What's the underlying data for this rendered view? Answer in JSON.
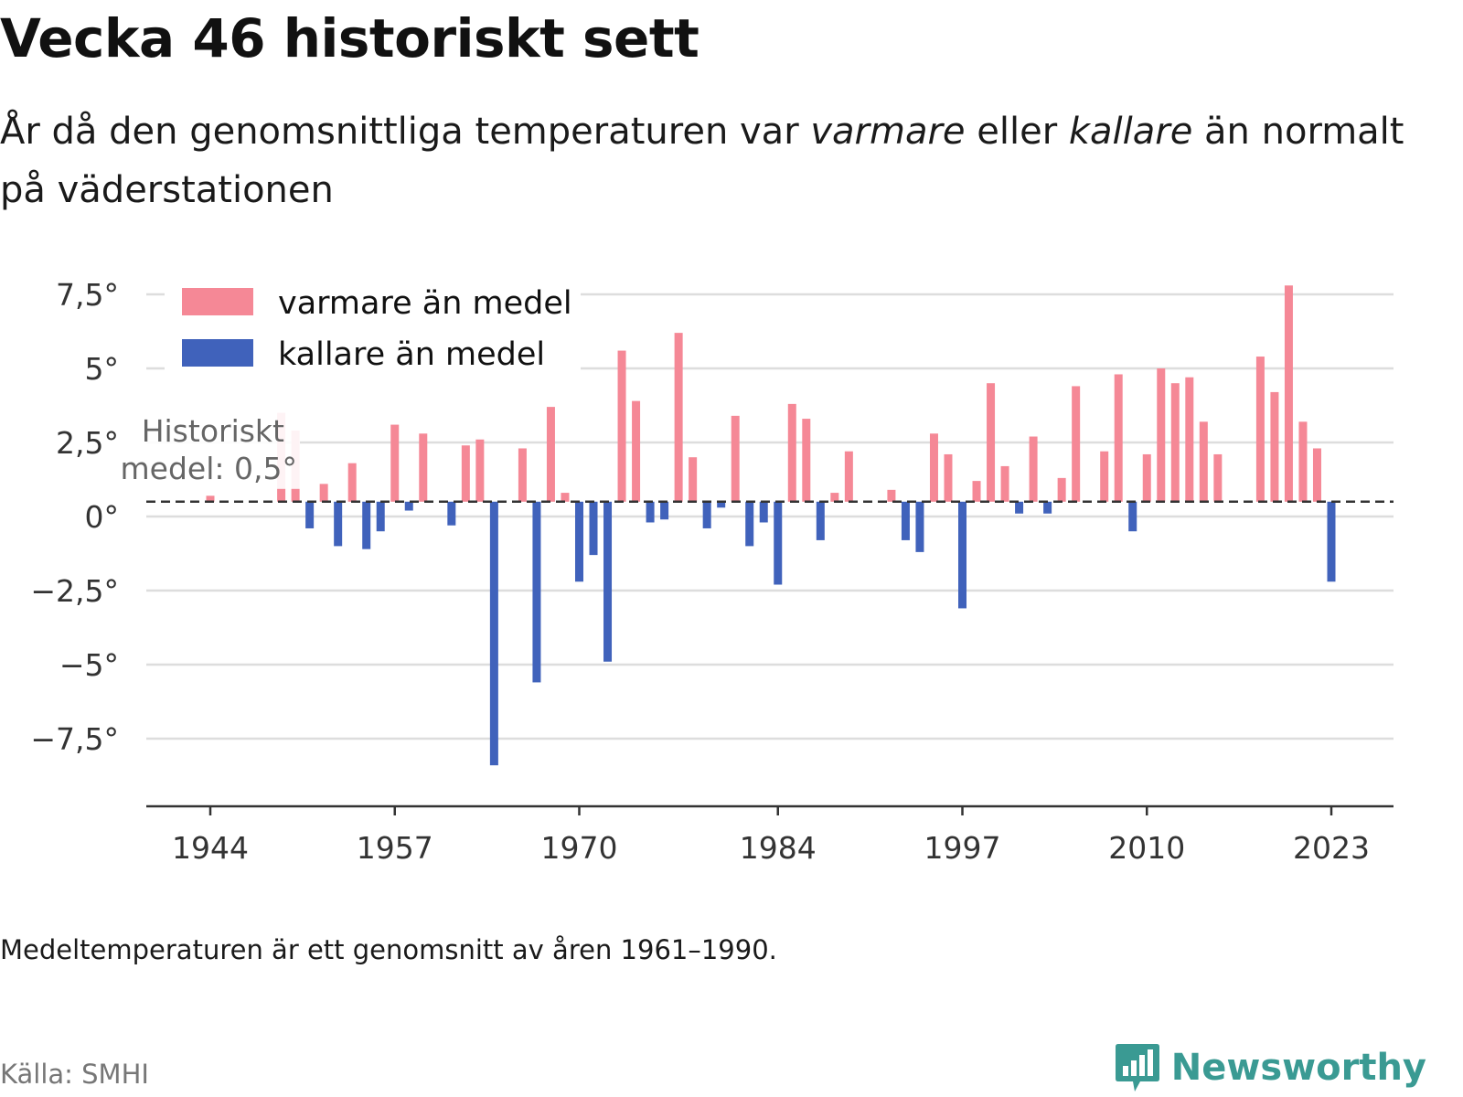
{
  "title": "Vecka 46 historiskt sett",
  "subtitle": {
    "part1": "År då den genomsnittliga temperaturen var ",
    "em1": "varmare",
    "part2": " eller ",
    "em2": "kallare",
    "part3": " än normalt på väderstationen"
  },
  "footnote": "Medeltemperaturen är ett genomsnitt av åren 1961–1990.",
  "source": "Källa: SMHI",
  "brand": {
    "name": "Newsworthy",
    "icon": "newsworthy-bar-chart-icon",
    "color": "#3a9a93"
  },
  "chart_data": {
    "type": "bar",
    "reference_value": 0.5,
    "reference_label": [
      "Historiskt",
      "medel: 0,5°"
    ],
    "ylim": [
      -9.5,
      8.8
    ],
    "y_ticks": [
      {
        "value": 7.5,
        "label": "7,5°"
      },
      {
        "value": 5,
        "label": "5°"
      },
      {
        "value": 2.5,
        "label": "2,5°"
      },
      {
        "value": 0,
        "label": "0°"
      },
      {
        "value": -2.5,
        "label": "−2,5°"
      },
      {
        "value": -5,
        "label": "−5°"
      },
      {
        "value": -7.5,
        "label": "−7,5°"
      }
    ],
    "x_ticks": [
      1944,
      1957,
      1970,
      1984,
      1997,
      2010,
      2023
    ],
    "legend": {
      "position": "top-left",
      "items": [
        {
          "label": "varmare än medel",
          "color": "#f58896"
        },
        {
          "label": "kallare än medel",
          "color": "#4062bb"
        }
      ]
    },
    "colors": {
      "warm": "#f58896",
      "cold": "#4062bb",
      "grid": "#dddddd",
      "axis": "#333333",
      "reference": "#333333"
    },
    "grid": true,
    "series": [
      {
        "x": [
          1944,
          1945,
          1946,
          1947,
          1948,
          1949,
          1950,
          1951,
          1952,
          1953,
          1954,
          1955,
          1956,
          1957,
          1958,
          1959,
          1960,
          1961,
          1962,
          1963,
          1964,
          1965,
          1966,
          1967,
          1968,
          1969,
          1970,
          1971,
          1972,
          1973,
          1974,
          1975,
          1976,
          1977,
          1978,
          1979,
          1980,
          1981,
          1982,
          1983,
          1984,
          1985,
          1986,
          1987,
          1988,
          1989,
          1990,
          1991,
          1992,
          1993,
          1994,
          1995,
          1996,
          1997,
          1998,
          1999,
          2000,
          2001,
          2002,
          2003,
          2004,
          2005,
          2006,
          2007,
          2008,
          2009,
          2010,
          2011,
          2012,
          2013,
          2014,
          2015,
          2016,
          2017,
          2018,
          2019,
          2020,
          2021,
          2022,
          2023
        ],
        "values": [
          0.7,
          null,
          null,
          null,
          null,
          3.5,
          2.9,
          -0.4,
          1.1,
          -1.0,
          1.8,
          -1.1,
          -0.5,
          3.1,
          0.2,
          2.8,
          null,
          -0.3,
          2.4,
          2.6,
          -8.4,
          null,
          2.3,
          -5.6,
          3.7,
          0.8,
          -2.2,
          -1.3,
          -4.9,
          5.6,
          3.9,
          -0.2,
          -0.1,
          6.2,
          2.0,
          -0.4,
          0.3,
          3.4,
          -1.0,
          -0.2,
          -2.3,
          3.8,
          3.3,
          -0.8,
          0.8,
          2.2,
          null,
          null,
          0.9,
          -0.8,
          -1.2,
          2.8,
          2.1,
          -3.1,
          1.2,
          4.5,
          1.7,
          0.1,
          2.7,
          0.1,
          1.3,
          4.4,
          null,
          2.2,
          4.8,
          -0.5,
          2.1,
          5.0,
          4.5,
          4.7,
          3.2,
          2.1,
          null,
          null,
          5.4,
          4.2,
          7.8,
          3.2,
          2.3,
          -2.2
        ]
      }
    ]
  }
}
